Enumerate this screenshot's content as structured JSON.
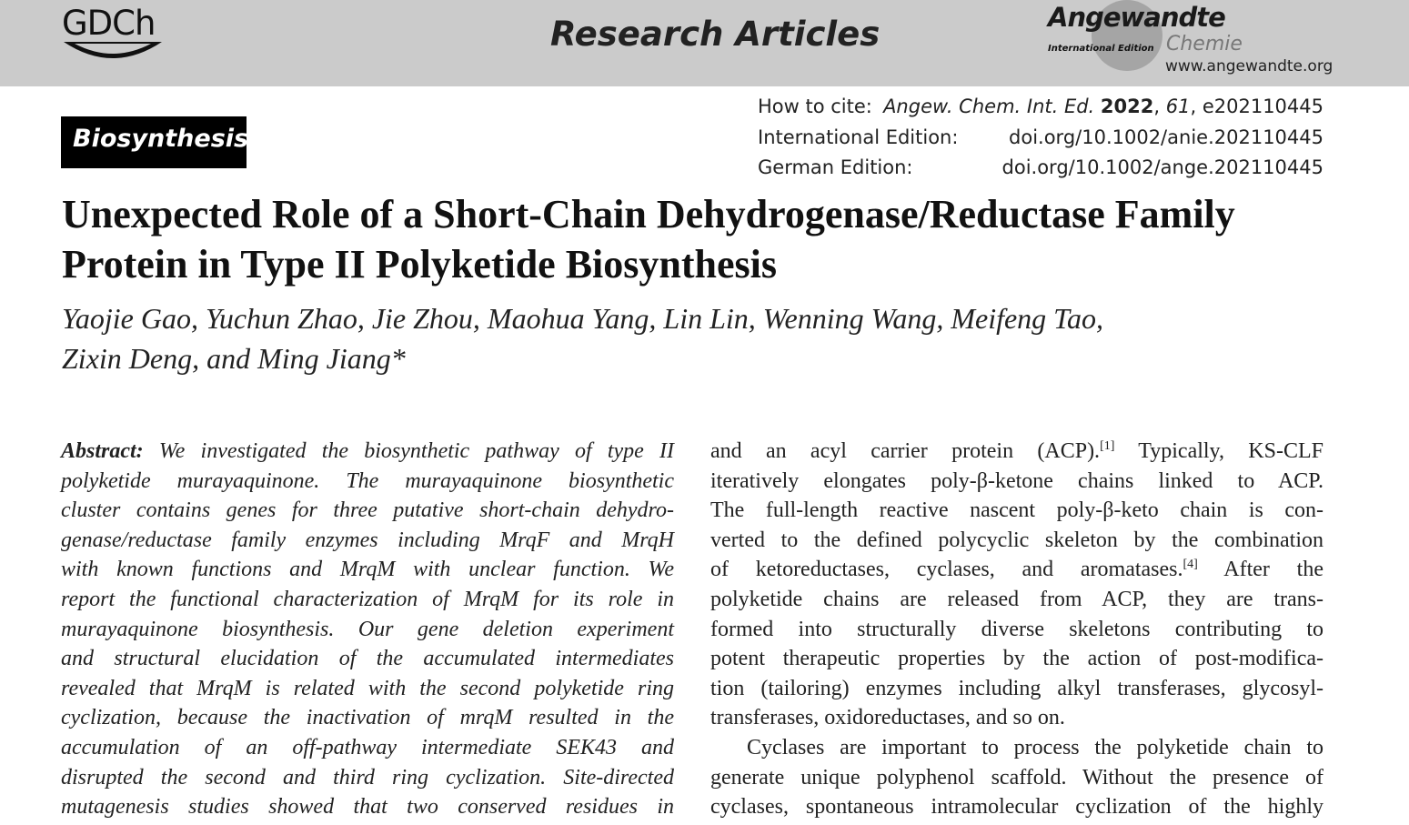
{
  "header": {
    "society_logo": "GDCh",
    "section": "Research Articles",
    "journal_logo": {
      "name": "Angewandte",
      "edition": "International Edition",
      "sub": "Chemie"
    },
    "website": "www.angewandte.org"
  },
  "badge": "Biosynthesis",
  "cite": {
    "how_label": "How to cite:",
    "how_journal": "Angew. Chem. Int. Ed.",
    "how_year": "2022",
    "how_vol": "61",
    "how_id": "e202110445",
    "intl_label": "International Edition:",
    "intl_doi": "doi.org/10.1002/anie.202110445",
    "german_label": "German Edition:",
    "german_doi": "doi.org/10.1002/ange.202110445"
  },
  "title": [
    "Unexpected Role of a Short-Chain Dehydrogenase/Reductase Family",
    "Protein in Type II Polyketide Biosynthesis"
  ],
  "authors": [
    "Yaojie Gao, Yuchun Zhao, Jie Zhou, Maohua Yang, Lin Lin, Wenning Wang, Meifeng Tao,",
    "Zixin Deng, and Ming Jiang*"
  ],
  "abstract": {
    "label": "Abstract:",
    "lines": [
      " We investigated the biosynthetic pathway of type II",
      "polyketide murayaquinone. The murayaquinone biosynthetic",
      "cluster contains genes for three putative short-chain dehydro-",
      "genase/reductase family enzymes including MrqF and MrqH",
      "with known functions and MrqM with unclear function. We",
      "report the functional characterization of MrqM for its role in",
      "murayaquinone biosynthesis. Our gene deletion experiment",
      "and structural elucidation of the accumulated intermediates",
      "revealed that MrqM is related with the second polyketide ring",
      "cyclization, because the inactivation of mrqM resulted in the",
      "accumulation of an off-pathway intermediate SEK43 and",
      "disrupted the second and third ring cyclization. Site-directed",
      "mutagenesis studies showed that two conserved residues in"
    ]
  },
  "body": {
    "line0a": "and an acyl carrier protein (ACP).",
    "ref1": "[1]",
    "line0b": " Typically, KS-CLF",
    "line4a": "of ketoreductases, cyclases, and aromatases.",
    "ref4": "[4]",
    "line4b": " After the",
    "lines": [
      "iteratively elongates poly-β-ketone chains linked to ACP.",
      "The full-length reactive nascent poly-β-keto chain is con-",
      "verted to the defined polycyclic skeleton by the combination",
      "polyketide chains are released from ACP, they are trans-",
      "formed into structurally diverse skeletons contributing to",
      "potent therapeutic properties by the action of post-modifica-",
      "tion (tailoring) enzymes including alkyl transferases, glycosyl-",
      "transferases, oxidoreductases, and so on.",
      "Cyclases are important to process the polyketide chain to",
      "generate unique polyphenol scaffold. Without the presence of",
      "cyclases, spontaneous intramolecular cyclization of the highly"
    ]
  }
}
